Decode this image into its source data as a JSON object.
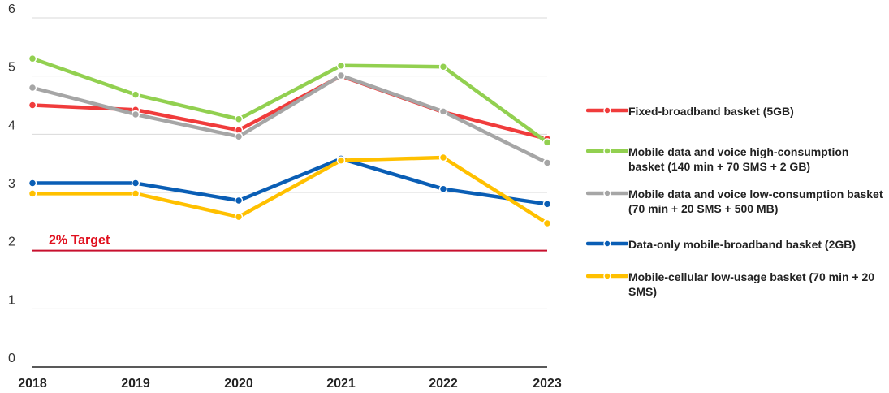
{
  "chart_data": {
    "type": "line",
    "categories": [
      "2018",
      "2019",
      "2020",
      "2021",
      "2022",
      "2023"
    ],
    "ylim": [
      0,
      6
    ],
    "yticks": [
      "0",
      "1",
      "2",
      "3",
      "4",
      "5",
      "6"
    ],
    "grid": true,
    "legend_position": "right",
    "target": {
      "label": "2% Target",
      "value": 2,
      "color": "#c8102e"
    },
    "series": [
      {
        "name": "Fixed-broadband basket (5GB)",
        "color": "#f03c3c",
        "values": [
          4.5,
          4.42,
          4.07,
          5.0,
          4.38,
          3.92
        ]
      },
      {
        "name": "Mobile data and voice high-consumption basket (140 min + 70 SMS + 2 GB)",
        "color": "#92d050",
        "values": [
          5.3,
          4.68,
          4.26,
          5.18,
          5.16,
          3.86
        ]
      },
      {
        "name": "Mobile data and voice low-consumption basket (70 min + 20 SMS + 500 MB)",
        "color": "#a6a6a6",
        "values": [
          4.8,
          4.34,
          3.96,
          5.01,
          4.39,
          3.51
        ]
      },
      {
        "name": "Data-only mobile-broadband basket (2GB)",
        "color": "#0a5eb5",
        "values": [
          3.16,
          3.16,
          2.86,
          3.58,
          3.06,
          2.8
        ]
      },
      {
        "name": "Mobile-cellular low-usage basket (70 min + 20 SMS)",
        "color": "#ffc000",
        "values": [
          2.98,
          2.98,
          2.58,
          3.55,
          3.6,
          2.47
        ]
      }
    ]
  }
}
